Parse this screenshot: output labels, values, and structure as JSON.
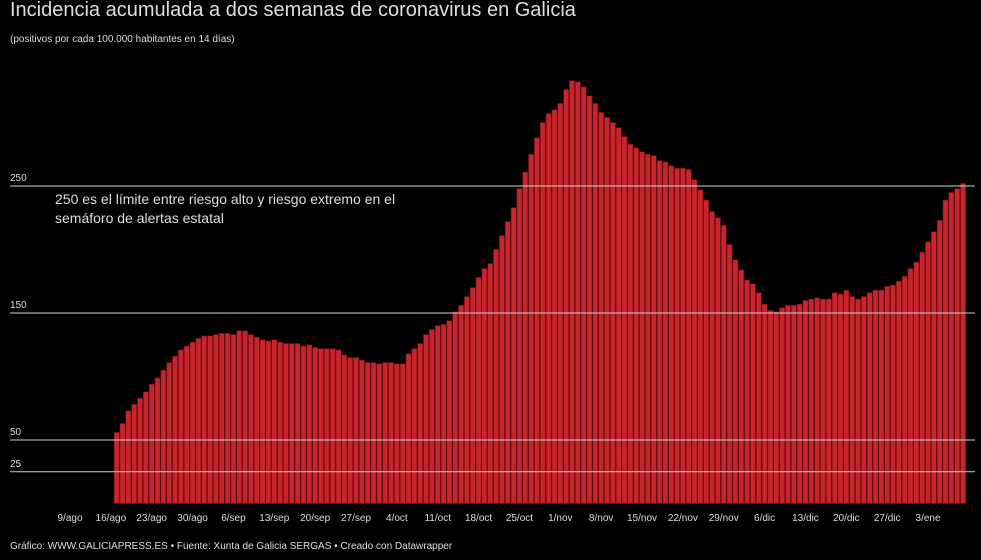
{
  "chart_data": {
    "type": "bar",
    "title": "Incidencia acumulada a dos semanas de coronavirus en Galicia",
    "subtitle": "(positivos por cada 100.000 habitantes en 14 días)",
    "annotation": [
      "250 es el límite entre riesgo alto y riesgo extremo en el",
      "semáforo de alertas estatal"
    ],
    "footer": "Gráfico: WWW.GALICIAPRESS.ES • Fuente: Xunta de Galicia SERGAS • Creado con Datawrapper",
    "categories": [
      null,
      null,
      null,
      null,
      null,
      null,
      null,
      null,
      "9/ago",
      null,
      null,
      null,
      null,
      null,
      null,
      "16/ago",
      null,
      null,
      null,
      null,
      null,
      null,
      "23/ago",
      null,
      null,
      null,
      null,
      null,
      null,
      "30/ago",
      null,
      null,
      null,
      null,
      null,
      null,
      "6/sep",
      null,
      null,
      null,
      null,
      null,
      null,
      "13/sep",
      null,
      null,
      null,
      null,
      null,
      null,
      "20/sep",
      null,
      null,
      null,
      null,
      null,
      null,
      "27/sep",
      null,
      null,
      null,
      null,
      null,
      null,
      "4/oct",
      null,
      null,
      null,
      null,
      null,
      null,
      "11/oct",
      null,
      null,
      null,
      null,
      null,
      null,
      "18/oct",
      null,
      null,
      null,
      null,
      null,
      null,
      "25/oct",
      null,
      null,
      null,
      null,
      null,
      null,
      "1/nov",
      null,
      null,
      null,
      null,
      null,
      null,
      "8/nov",
      null,
      null,
      null,
      null,
      null,
      null,
      "15/nov",
      null,
      null,
      null,
      null,
      null,
      null,
      "22/nov",
      null,
      null,
      null,
      null,
      null,
      null,
      "29/nov",
      null,
      null,
      null,
      null,
      null,
      null,
      "6/dic",
      null,
      null,
      null,
      null,
      null,
      null,
      "13/dic",
      null,
      null,
      null,
      null,
      null,
      null,
      "20/dic",
      null,
      null,
      null,
      null,
      null,
      null,
      "27/dic",
      null,
      null,
      null,
      null,
      null,
      null,
      "3/ene",
      null,
      null,
      null,
      null,
      null,
      null
    ],
    "values": [
      null,
      null,
      null,
      null,
      null,
      null,
      null,
      null,
      null,
      null,
      null,
      null,
      null,
      null,
      null,
      null,
      56,
      63,
      73,
      78,
      83,
      88,
      94,
      99,
      105,
      111,
      116,
      121,
      124,
      127,
      130,
      132,
      132,
      133,
      134,
      134,
      133,
      136,
      136,
      133,
      131,
      129,
      128,
      129,
      127,
      126,
      126,
      126,
      124,
      125,
      123,
      122,
      122,
      122,
      121,
      117,
      115,
      115,
      113,
      111,
      111,
      110,
      111,
      111,
      110,
      110,
      118,
      122,
      126,
      133,
      137,
      140,
      141,
      144,
      151,
      156,
      163,
      170,
      178,
      185,
      189,
      200,
      211,
      222,
      233,
      248,
      261,
      275,
      288,
      300,
      307,
      310,
      315,
      326,
      333,
      332,
      328,
      321,
      315,
      308,
      304,
      300,
      296,
      289,
      283,
      280,
      277,
      275,
      274,
      270,
      269,
      266,
      264,
      264,
      263,
      255,
      247,
      239,
      230,
      225,
      219,
      204,
      192,
      184,
      176,
      173,
      166,
      157,
      152,
      151,
      154,
      156,
      156,
      157,
      160,
      161,
      162,
      161,
      161,
      166,
      165,
      168,
      163,
      161,
      163,
      166,
      168,
      168,
      171,
      172,
      175,
      179,
      185,
      190,
      198,
      206,
      214,
      223,
      239,
      245,
      248,
      252
    ],
    "color": "#c8242b",
    "ylim": [
      0,
      350
    ],
    "yticks": [
      25,
      50,
      150,
      250
    ],
    "grid": true
  }
}
